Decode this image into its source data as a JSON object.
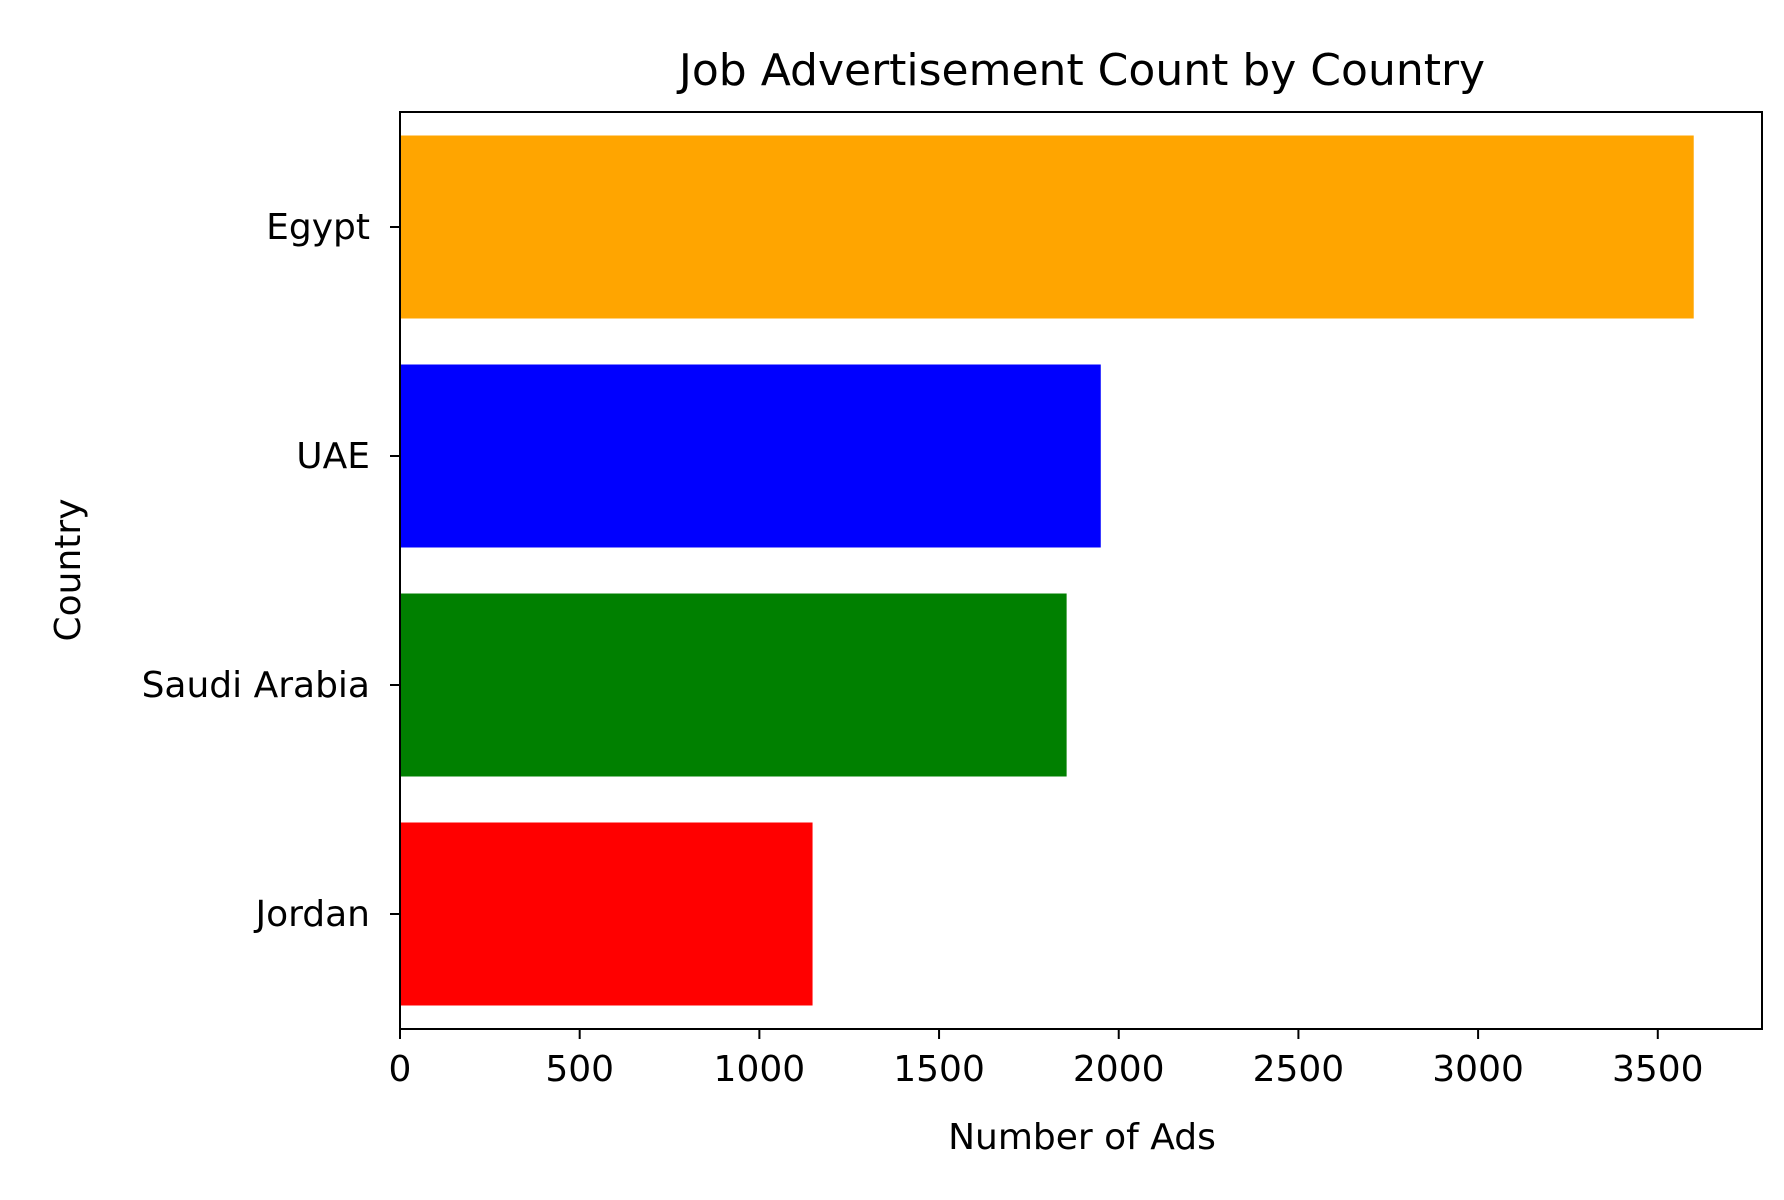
{
  "chart_data": {
    "type": "bar",
    "orientation": "horizontal",
    "title": "Job Advertisement Count by Country",
    "xlabel": "Number of Ads",
    "ylabel": "Country",
    "categories": [
      "Egypt",
      "UAE",
      "Saudi Arabia",
      "Jordan"
    ],
    "values": [
      3600,
      1950,
      1855,
      1148
    ],
    "colors": [
      "#ffa500",
      "#0000ff",
      "#008000",
      "#ff0000"
    ],
    "xlim": [
      0,
      3790
    ],
    "xticks": [
      0,
      500,
      1000,
      1500,
      2000,
      2500,
      3000,
      3500
    ],
    "grid": false,
    "legend": "none"
  }
}
